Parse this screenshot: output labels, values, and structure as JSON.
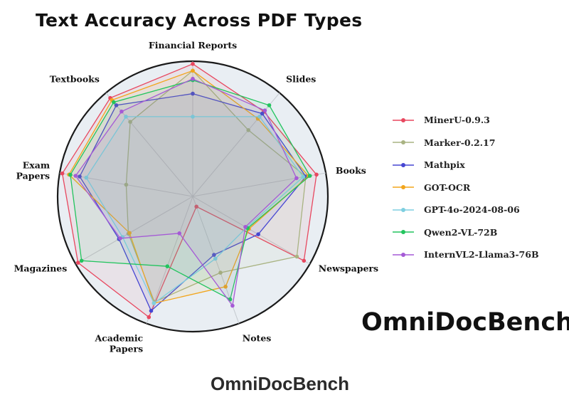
{
  "chart_data": {
    "type": "radar",
    "title": "Text Accuracy Across PDF Types",
    "categories": [
      "Financial Reports",
      "Slides",
      "Books",
      "Newspapers",
      "Notes",
      "Academic Papers",
      "Magazines",
      "Exam Papers",
      "Textbooks"
    ],
    "category_lines": [
      [
        "Financial Reports"
      ],
      [
        "Slides"
      ],
      [
        "Books"
      ],
      [
        "Newspapers"
      ],
      [
        "Notes"
      ],
      [
        "Academic",
        "Papers"
      ],
      [
        "Magazines"
      ],
      [
        "Exam",
        "Papers"
      ],
      [
        "Textbooks"
      ]
    ],
    "range": [
      0,
      1
    ],
    "grid": true,
    "legend_position": "right",
    "series": [
      {
        "name": "MinerU-0.9.3",
        "color": "#e8475f",
        "values": [
          0.98,
          0.82,
          0.93,
          0.95,
          0.08,
          0.95,
          0.98,
          0.98,
          0.95
        ]
      },
      {
        "name": "Marker-0.2.17",
        "color": "#a9b382",
        "values": [
          0.93,
          0.64,
          0.85,
          0.89,
          0.6,
          0.83,
          0.55,
          0.5,
          0.72
        ]
      },
      {
        "name": "Mathpix",
        "color": "#4646d2",
        "values": [
          0.76,
          0.8,
          0.85,
          0.56,
          0.46,
          0.9,
          0.63,
          0.85,
          0.88
        ]
      },
      {
        "name": "GOT-OCR",
        "color": "#f2a51c",
        "values": [
          0.93,
          0.75,
          0.87,
          0.48,
          0.71,
          0.84,
          0.54,
          0.93,
          0.93
        ]
      },
      {
        "name": "GPT-4o-2024-08-06",
        "color": "#7ecfe0",
        "values": [
          0.59,
          0.77,
          0.83,
          0.46,
          0.49,
          0.84,
          0.6,
          0.8,
          0.77
        ]
      },
      {
        "name": "Qwen2-VL-72B",
        "color": "#22c45e",
        "values": [
          0.86,
          0.88,
          0.88,
          0.47,
          0.81,
          0.55,
          0.95,
          0.92,
          0.91
        ]
      },
      {
        "name": "InternVL2-Llama3-76B",
        "color": "#a55ad6",
        "values": [
          0.87,
          0.83,
          0.78,
          0.45,
          0.86,
          0.29,
          0.62,
          0.88,
          0.82
        ]
      }
    ]
  },
  "brand": {
    "main": "OmniDocBench",
    "sub": "OmniDocBench"
  }
}
